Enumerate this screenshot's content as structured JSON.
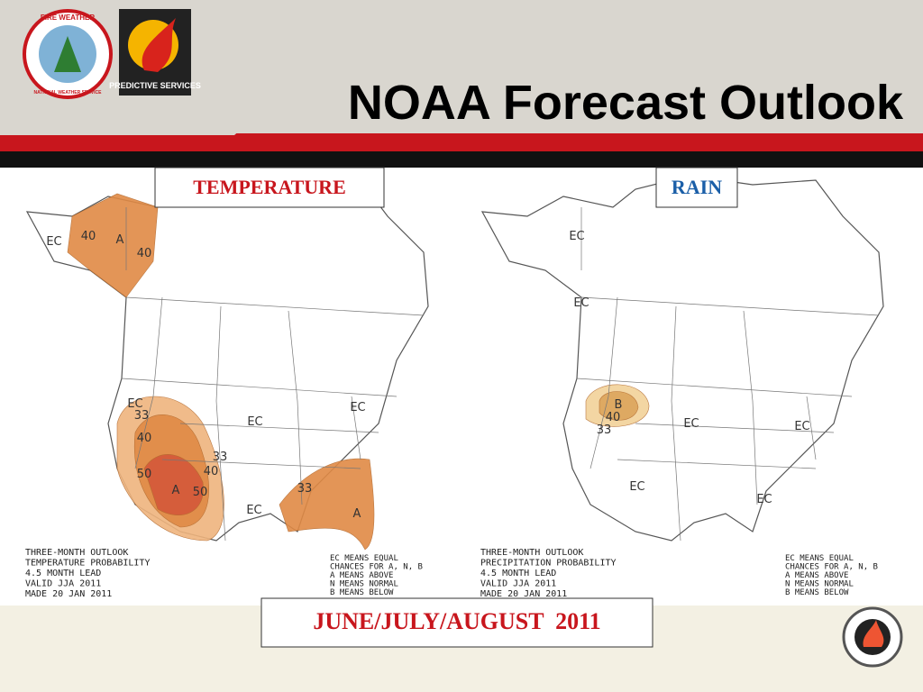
{
  "header": {
    "title": "NOAA Forecast Outlook",
    "logos": [
      "FIRE WEATHER",
      "NATIONAL WEATHER SERVICE",
      "PREDICTIVE SERVICES"
    ]
  },
  "panels": [
    {
      "label": "TEMPERATURE",
      "outlook": [
        "THREE-MONTH OUTLOOK",
        "TEMPERATURE PROBABILITY",
        "4.5 MONTH LEAD",
        "VALID JJA 2011",
        "MADE 20 JAN 2011"
      ],
      "key": [
        "EC MEANS EQUAL",
        "CHANCES FOR A, N, B",
        "A MEANS ABOVE",
        "N MEANS NORMAL",
        "B MEANS BELOW"
      ],
      "map_labels": [
        "EC",
        "40",
        "A",
        "40",
        "EC",
        "33",
        "40",
        "50",
        "A",
        "50",
        "40",
        "33",
        "EC",
        "EC",
        "EC",
        "33",
        "A"
      ]
    },
    {
      "label": "RAIN",
      "outlook": [
        "THREE-MONTH OUTLOOK",
        "PRECIPITATION PROBABILITY",
        "4.5 MONTH LEAD",
        "VALID JJA 2011",
        "MADE 20 JAN 2011"
      ],
      "key": [
        "EC MEANS EQUAL",
        "CHANCES FOR A, N, B",
        "A MEANS ABOVE",
        "N MEANS NORMAL",
        "B MEANS BELOW"
      ],
      "map_labels": [
        "EC",
        "EC",
        "B",
        "40",
        "33",
        "EC",
        "EC",
        "EC",
        "EC"
      ]
    }
  ],
  "footer": {
    "period": "JUNE/JULY/AUGUST  2011"
  }
}
